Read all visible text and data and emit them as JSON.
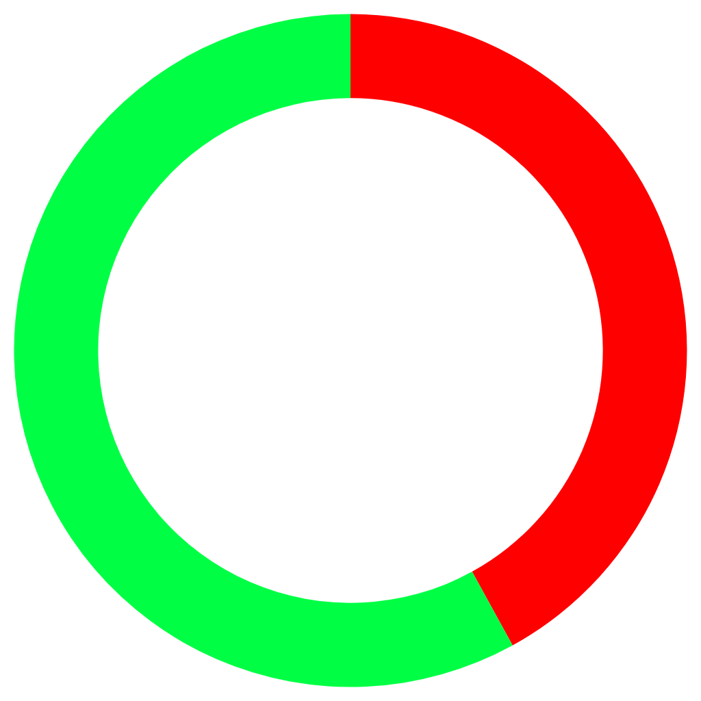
{
  "chart_data": {
    "type": "donut",
    "categories": [
      null,
      null
    ],
    "values": [
      42,
      58
    ],
    "colors": [
      "#ff0000",
      "#00ff44"
    ]
  }
}
